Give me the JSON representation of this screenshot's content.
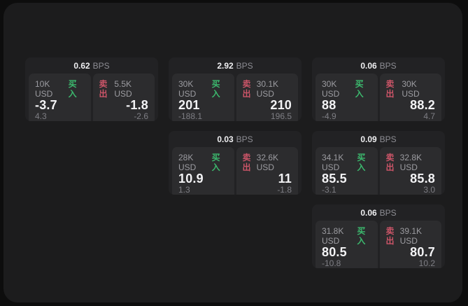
{
  "labels": {
    "bps_unit": "BPS",
    "buy": "买入",
    "sell": "卖出"
  },
  "colors": {
    "outer_bg": "#0d0d0d",
    "panel_bg": "#1c1c1d",
    "card_bg": "#222224",
    "cell_bg": "#2c2c2e",
    "buy_accent": "#3cb96e",
    "sell_accent": "#cc5568",
    "primary_text": "#f3f3f5",
    "muted_text": "#9c9ca1"
  },
  "cards": [
    {
      "bps": "0.62",
      "buy": {
        "amount": "10K USD",
        "price": "-3.7",
        "delta": "4.3"
      },
      "sell": {
        "amount": "5.5K USD",
        "price": "-1.8",
        "delta": "-2.6"
      }
    },
    {
      "bps": "2.92",
      "buy": {
        "amount": "30K USD",
        "price": "201",
        "delta": "-188.1"
      },
      "sell": {
        "amount": "30.1K USD",
        "price": "210",
        "delta": "196.5"
      }
    },
    {
      "bps": "0.06",
      "buy": {
        "amount": "30K USD",
        "price": "88",
        "delta": "-4.9"
      },
      "sell": {
        "amount": "30K USD",
        "price": "88.2",
        "delta": "4.7"
      }
    },
    {
      "bps": "0.03",
      "buy": {
        "amount": "28K USD",
        "price": "10.9",
        "delta": "1.3"
      },
      "sell": {
        "amount": "32.6K USD",
        "price": "11",
        "delta": "-1.8"
      }
    },
    {
      "bps": "0.09",
      "buy": {
        "amount": "34.1K USD",
        "price": "85.5",
        "delta": "-3.1"
      },
      "sell": {
        "amount": "32.8K USD",
        "price": "85.8",
        "delta": "3.0"
      }
    },
    {
      "bps": "0.06",
      "buy": {
        "amount": "31.8K USD",
        "price": "80.5",
        "delta": "-10.8"
      },
      "sell": {
        "amount": "39.1K USD",
        "price": "80.7",
        "delta": "10.2"
      }
    }
  ]
}
